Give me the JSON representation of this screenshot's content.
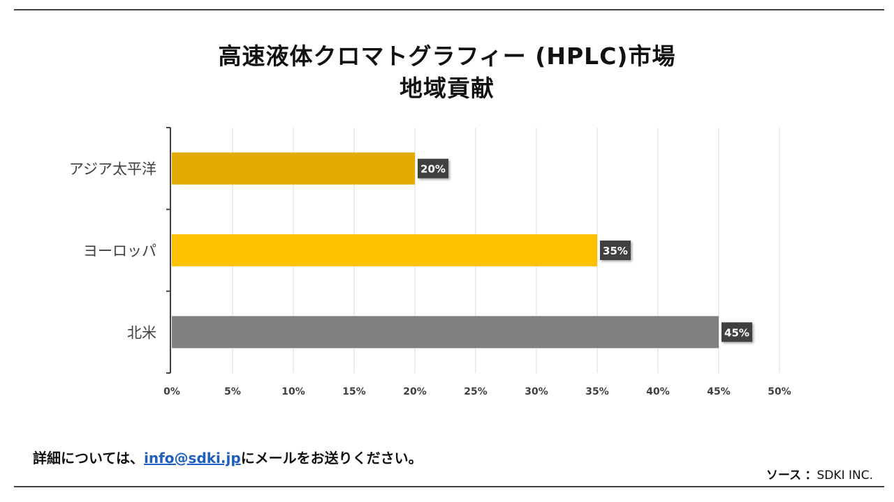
{
  "title_line1": "高速液体クロマトグラフィー (HPLC)市場",
  "title_line2": "地域貢献",
  "footer": {
    "prefix": "詳細については、",
    "email": "info@sdki.jp",
    "suffix": "にメールをお送りください。"
  },
  "source": {
    "label": "ソース",
    "separator": "：",
    "value": "SDKI INC."
  },
  "colors": {
    "asia_pacific": "#E2AC00",
    "europe": "#FFC000",
    "north_america": "#808080",
    "label_bg": "#404040",
    "grid": "#d9d9d9",
    "axis": "#404040"
  },
  "chart_data": {
    "type": "bar",
    "orientation": "horizontal",
    "categories": [
      "アジア太平洋",
      "ヨーロッパ",
      "北米"
    ],
    "values": [
      20,
      35,
      45
    ],
    "data_labels": [
      "20%",
      "35%",
      "45%"
    ],
    "xlim": [
      0,
      50
    ],
    "x_ticks": [
      0,
      5,
      10,
      15,
      20,
      25,
      30,
      35,
      40,
      45,
      50
    ],
    "x_tick_labels": [
      "0%",
      "5%",
      "10%",
      "15%",
      "20%",
      "25%",
      "30%",
      "35%",
      "40%",
      "45%",
      "50%"
    ],
    "grid": true,
    "legend": "none"
  }
}
